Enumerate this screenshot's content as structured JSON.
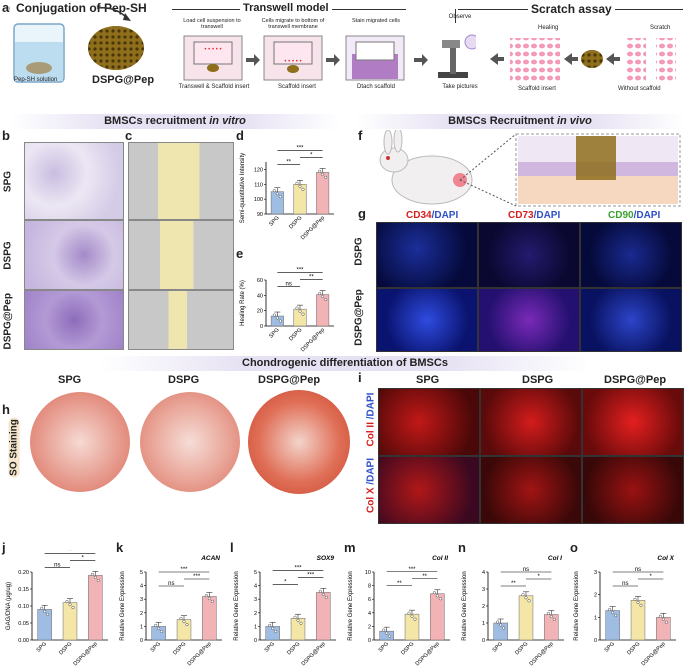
{
  "panel_a": {
    "label": "a",
    "title_conj": "Conjugation of Pep-SH",
    "title_transwell": "Transwell model",
    "title_scratch": "Scratch assay",
    "pepsh_solution": "Pep-SH solution",
    "product": "DSPG@Pep",
    "step1": "Load cell suspension to transwell",
    "step2": "Cells migrate to bottom of transwell membrane",
    "step3": "Stain migrated cells",
    "step4": "Observe",
    "sub1": "Transwell & Scaffold insert",
    "sub2": "Scaffold insert",
    "sub3": "Dtach scaffold",
    "sub4": "Take pictures",
    "healing": "Healing",
    "scratch": "Scratch",
    "scaffold_insert": "Scaffold insert",
    "without_scaffold": "Without scaffold"
  },
  "banner_vitro": {
    "text": "BMSCs recruitment ",
    "italic": "in vitro"
  },
  "banner_vivo": {
    "text": "BMSCs Recruitment ",
    "italic": "in vivo"
  },
  "banner_chondro": {
    "text": "Chondrogenic differentiation of BMSCs"
  },
  "rows_bc": [
    "SPG",
    "DSPG",
    "DSPG@Pep"
  ],
  "panel_labels": {
    "b": "b",
    "c": "c",
    "d": "d",
    "e": "e",
    "f": "f",
    "g": "g",
    "h": "h",
    "i": "i",
    "j": "j",
    "k": "k",
    "l": "l",
    "m": "m",
    "n": "n",
    "o": "o"
  },
  "panel_g": {
    "col_headers": [
      {
        "marker": "CD34",
        "rest": "/DAPI",
        "color": "#d42020"
      },
      {
        "marker": "CD73",
        "rest": "/DAPI",
        "color": "#d42020"
      },
      {
        "marker": "CD90",
        "rest": "/DAPI",
        "color": "#3aa030"
      }
    ],
    "rows": [
      "DSPG",
      "DSPG@Pep"
    ]
  },
  "panel_h": {
    "cols": [
      "SPG",
      "DSPG",
      "DSPG@Pep"
    ],
    "row_label": "SO Staining"
  },
  "panel_i": {
    "cols": [
      "SPG",
      "DSPG",
      "DSPG@Pep"
    ],
    "row1": {
      "a": "Col II",
      "b": " /DAPI"
    },
    "row2": {
      "a": "Col X",
      "b": " /DAPI"
    }
  },
  "colors": {
    "spg": "#9fbde3",
    "dspg": "#f3e6a6",
    "dspgpep": "#f2b3b6",
    "accent": "#d42020"
  },
  "chart_data": [
    {
      "id": "d",
      "type": "bar",
      "categories": [
        "SPG",
        "DSPG",
        "DSPG@Pep"
      ],
      "values": [
        105,
        110,
        118
      ],
      "ylabel": "Semi-quantitative Intensity",
      "ylim": [
        90,
        125
      ],
      "yticks": [
        90,
        100,
        110,
        120
      ],
      "sig": [
        {
          "from": 0,
          "to": 1,
          "label": "**"
        },
        {
          "from": 1,
          "to": 2,
          "label": "*"
        },
        {
          "from": 0,
          "to": 2,
          "label": "***"
        }
      ]
    },
    {
      "id": "e",
      "type": "bar",
      "categories": [
        "SPG",
        "DSPG",
        "DSPG@Pep"
      ],
      "values": [
        13,
        22,
        41
      ],
      "ylabel": "Healing Rate (%)",
      "ylim": [
        0,
        60
      ],
      "yticks": [
        0,
        20,
        40,
        60
      ],
      "sig": [
        {
          "from": 0,
          "to": 1,
          "label": "ns"
        },
        {
          "from": 1,
          "to": 2,
          "label": "**"
        },
        {
          "from": 0,
          "to": 2,
          "label": "***"
        }
      ]
    },
    {
      "id": "j",
      "type": "bar",
      "categories": [
        "SPG",
        "DSPG",
        "DSPG@Pep"
      ],
      "values": [
        0.09,
        0.11,
        0.19
      ],
      "ylabel": "GAG/DNA (μg/ug)",
      "ylim": [
        0,
        0.2
      ],
      "yticks": [
        0,
        0.05,
        0.1,
        0.15,
        0.2
      ],
      "ytick_labels": [
        "0.00",
        "0.05",
        "0.10",
        "0.15",
        "0.20"
      ],
      "sig": [
        {
          "from": 0,
          "to": 1,
          "label": "ns"
        },
        {
          "from": 1,
          "to": 2,
          "label": "*"
        },
        {
          "from": 0,
          "to": 2,
          "label": "**"
        }
      ]
    },
    {
      "id": "k",
      "type": "bar",
      "gene": "ACAN",
      "categories": [
        "SPG",
        "DSPG",
        "DSPG@Pep"
      ],
      "values": [
        1.0,
        1.5,
        3.2
      ],
      "ylabel": "Relative Gene Expression",
      "ylim": [
        0,
        5
      ],
      "yticks": [
        0,
        1,
        2,
        3,
        4,
        5
      ],
      "sig": [
        {
          "from": 0,
          "to": 1,
          "label": "ns"
        },
        {
          "from": 1,
          "to": 2,
          "label": "***"
        },
        {
          "from": 0,
          "to": 2,
          "label": "***"
        }
      ]
    },
    {
      "id": "l",
      "type": "bar",
      "gene": "SOX9",
      "categories": [
        "SPG",
        "DSPG",
        "DSPG@Pep"
      ],
      "values": [
        1.0,
        1.6,
        3.5
      ],
      "ylabel": "Relative Gene Expression",
      "ylim": [
        0,
        5
      ],
      "yticks": [
        0,
        1,
        2,
        3,
        4,
        5
      ],
      "sig": [
        {
          "from": 0,
          "to": 1,
          "label": "*"
        },
        {
          "from": 1,
          "to": 2,
          "label": "***"
        },
        {
          "from": 0,
          "to": 2,
          "label": "***"
        }
      ]
    },
    {
      "id": "m",
      "type": "bar",
      "gene": "Col II",
      "categories": [
        "SPG",
        "DSPG",
        "DSPG@Pep"
      ],
      "values": [
        1.3,
        3.8,
        6.8
      ],
      "ylabel": "Relative Gene Expression",
      "ylim": [
        0,
        10
      ],
      "yticks": [
        0,
        2,
        4,
        6,
        8,
        10
      ],
      "sig": [
        {
          "from": 0,
          "to": 1,
          "label": "**"
        },
        {
          "from": 1,
          "to": 2,
          "label": "**"
        },
        {
          "from": 0,
          "to": 2,
          "label": "***"
        }
      ]
    },
    {
      "id": "n",
      "type": "bar",
      "gene": "Col I",
      "categories": [
        "SPG",
        "DSPG",
        "DSPG@Pep"
      ],
      "values": [
        1.0,
        2.6,
        1.5
      ],
      "ylabel": "Relative Gene Expression",
      "ylim": [
        0,
        4
      ],
      "yticks": [
        0,
        1,
        2,
        3,
        4
      ],
      "sig": [
        {
          "from": 0,
          "to": 1,
          "label": "**"
        },
        {
          "from": 1,
          "to": 2,
          "label": "*"
        },
        {
          "from": 0,
          "to": 2,
          "label": "ns"
        }
      ]
    },
    {
      "id": "o",
      "type": "bar",
      "gene": "Col X",
      "categories": [
        "SPG",
        "DSPG",
        "DSPG@Pep"
      ],
      "values": [
        1.3,
        1.75,
        1.0
      ],
      "ylabel": "Relative Gene Expression",
      "ylim": [
        0,
        3
      ],
      "yticks": [
        0,
        1,
        2,
        3
      ],
      "sig": [
        {
          "from": 0,
          "to": 1,
          "label": "ns"
        },
        {
          "from": 1,
          "to": 2,
          "label": "*"
        },
        {
          "from": 0,
          "to": 2,
          "label": "ns"
        }
      ]
    }
  ]
}
